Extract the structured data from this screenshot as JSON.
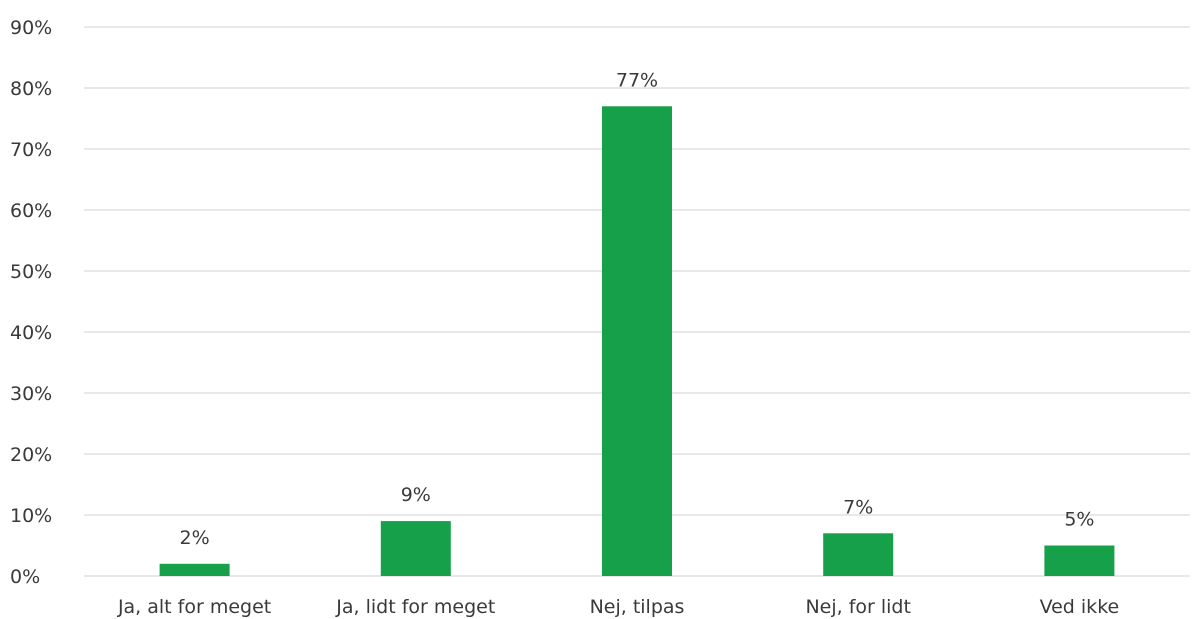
{
  "chart_data": {
    "type": "bar",
    "title": "",
    "xlabel": "",
    "ylabel": "",
    "categories": [
      "Ja, alt for meget",
      "Ja, lidt for meget",
      "Nej, tilpas",
      "Nej, for lidt",
      "Ved ikke"
    ],
    "values": [
      2,
      9,
      77,
      7,
      5
    ],
    "value_labels": [
      "2%",
      "9%",
      "77%",
      "7%",
      "5%"
    ],
    "ylim": [
      0,
      90
    ],
    "yticks": [
      0,
      10,
      20,
      30,
      40,
      50,
      60,
      70,
      80,
      90
    ],
    "ytick_labels": [
      "0%",
      "10%",
      "20%",
      "30%",
      "40%",
      "50%",
      "60%",
      "70%",
      "80%",
      "90%"
    ],
    "grid": true,
    "legend": "none",
    "bar_color": "#16a04a"
  }
}
